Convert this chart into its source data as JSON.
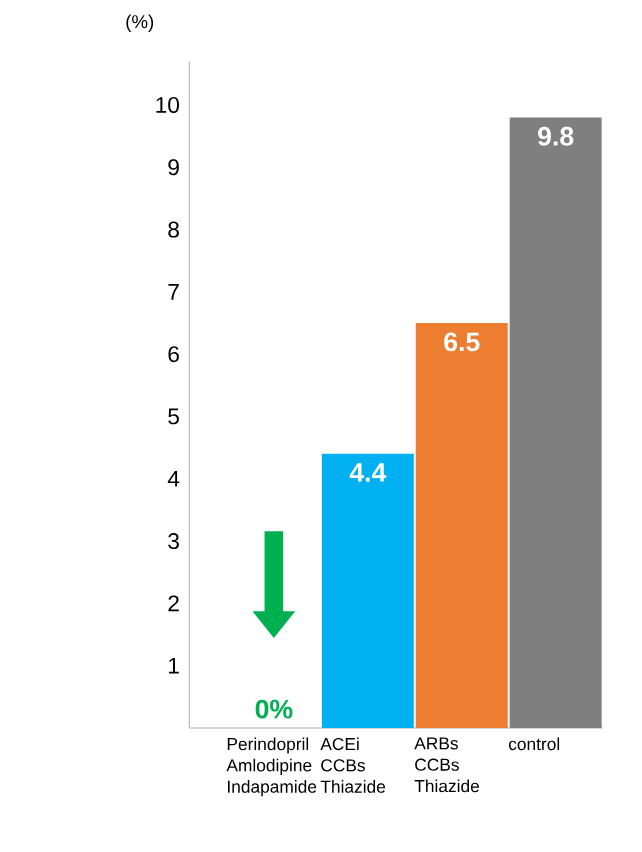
{
  "chart_data": {
    "type": "bar",
    "ylabel": "(%)",
    "categories": [
      "Perindopril Amlodipine Indapamide",
      "ACEi CCBs Thiazide",
      "ARBs CCBs Thiazide",
      "control"
    ],
    "values": [
      0,
      4.4,
      6.5,
      9.8
    ],
    "colors": [
      "#00b050",
      "#00b0f0",
      "#ed7d31",
      "#7f7f7f"
    ],
    "value_labels": [
      "0%",
      "4.4",
      "6.5",
      "9.8"
    ],
    "ylim": [
      0,
      10.7
    ],
    "yticks": [
      1,
      2,
      3,
      4,
      5,
      6,
      7,
      8,
      9,
      10
    ],
    "grid": false
  }
}
